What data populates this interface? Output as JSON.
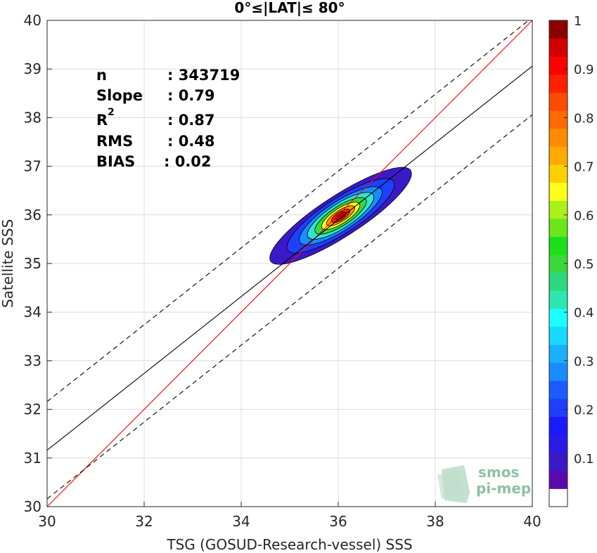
{
  "chart_data": {
    "type": "heatmap",
    "title": "0°≤|LAT|≤ 80°",
    "xlabel": "TSG (GOSUD-Research-vessel) SSS",
    "ylabel": "Satellite SSS",
    "xlim": [
      30,
      40
    ],
    "ylim": [
      30,
      40
    ],
    "xticks": [
      "30",
      "32",
      "34",
      "36",
      "38",
      "40"
    ],
    "yticks": [
      "30",
      "31",
      "32",
      "33",
      "34",
      "35",
      "36",
      "37",
      "38",
      "39",
      "40"
    ],
    "grid": true,
    "stats": [
      {
        "label": "n",
        "value": ": 343719"
      },
      {
        "label": "Slope",
        "value": ": 0.79"
      },
      {
        "label": "R",
        "sup": "2",
        "value": ": 0.87"
      },
      {
        "label": "RMS",
        "value": ": 0.48"
      },
      {
        "label": "BIAS",
        "value": ": 0.02"
      }
    ],
    "lines": {
      "one_to_one": {
        "slope": 1,
        "intercept": 0,
        "color": "#ff0000"
      },
      "fit": {
        "slope": 0.79,
        "intercept": 7.46,
        "color": "#000000"
      },
      "upper_bound": {
        "slope": 0.79,
        "intercept": 8.46,
        "color": "#000000",
        "dashed": true
      },
      "lower_bound": {
        "slope": 0.79,
        "intercept": 6.46,
        "color": "#000000",
        "dashed": true
      }
    },
    "density": {
      "center": [
        36.05,
        35.98
      ],
      "angle_deg": 33,
      "levels": [
        {
          "level": 0.05,
          "rx": 1.72,
          "ry": 0.42,
          "color": "#3a1ac8"
        },
        {
          "level": 0.15,
          "rx": 1.3,
          "ry": 0.36,
          "color": "#1f3fff"
        },
        {
          "level": 0.3,
          "rx": 1.0,
          "ry": 0.3,
          "color": "#1a8cff"
        },
        {
          "level": 0.45,
          "rx": 0.8,
          "ry": 0.25,
          "color": "#2ee6d0"
        },
        {
          "level": 0.55,
          "rx": 0.62,
          "ry": 0.2,
          "color": "#3ad83a"
        },
        {
          "level": 0.65,
          "rx": 0.46,
          "ry": 0.155,
          "color": "#ffff1a"
        },
        {
          "level": 0.75,
          "rx": 0.34,
          "ry": 0.115,
          "color": "#ff9a00"
        },
        {
          "level": 0.85,
          "rx": 0.22,
          "ry": 0.085,
          "color": "#ff2000"
        },
        {
          "level": 0.95,
          "rx": 0.12,
          "ry": 0.055,
          "color": "#c00000"
        }
      ]
    },
    "colorbar": {
      "range": [
        0,
        1
      ],
      "ticks": [
        "0.1",
        "0.2",
        "0.3",
        "0.4",
        "0.5",
        "0.6",
        "0.7",
        "0.8",
        "0.9",
        "1"
      ],
      "colors": [
        "#ffffff",
        "#5a0aaa",
        "#3a1ac8",
        "#2a1ae8",
        "#1a1aff",
        "#1f3fff",
        "#1a5cff",
        "#1a8cff",
        "#1ab0ff",
        "#1ad8ff",
        "#1affff",
        "#2ee6b0",
        "#2ed880",
        "#3ad83a",
        "#1ae01a",
        "#6ae61a",
        "#aaf01a",
        "#ffff1a",
        "#ffd000",
        "#ffaa00",
        "#ff8c00",
        "#ff6a00",
        "#ff4a00",
        "#ff2000",
        "#ff0000",
        "#d40000",
        "#8c0000"
      ]
    }
  },
  "logo": {
    "line1": "smos",
    "line2": "pi-mep"
  }
}
